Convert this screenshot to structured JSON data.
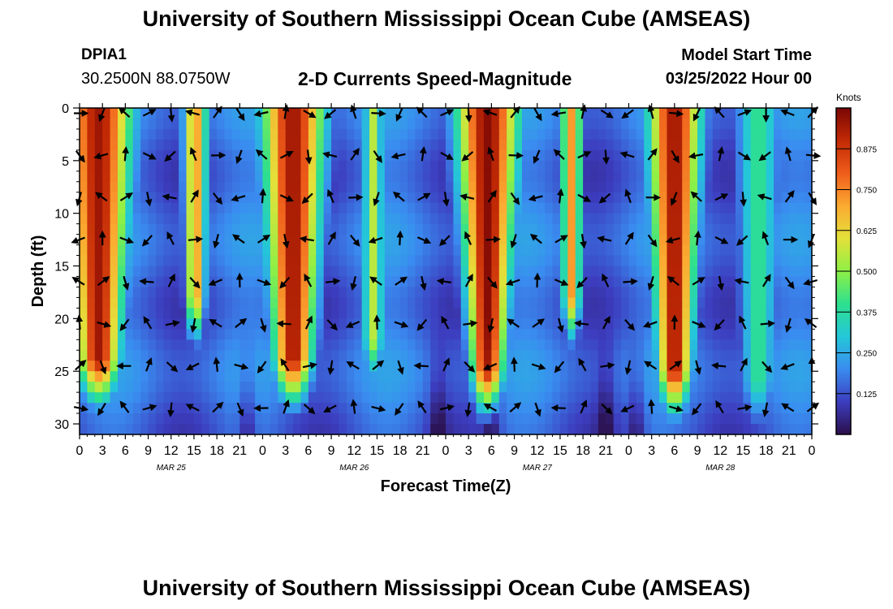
{
  "header": {
    "title": "University of Southern Mississippi Ocean Cube (AMSEAS)",
    "station_id": "DPIA1",
    "coordinates": "30.2500N  88.0750W",
    "subtitle": "2-D Currents Speed-Magnitude",
    "model_start_label": "Model Start Time",
    "model_start_value": "03/25/2022 Hour 00"
  },
  "footer": {
    "title": "University of Southern Mississippi Ocean Cube (AMSEAS)"
  },
  "chart_data": {
    "type": "heatmap",
    "xlabel": "Forecast Time(Z)",
    "ylabel": "Depth (ft)",
    "x_range": [
      0,
      96
    ],
    "y_range": [
      0,
      31
    ],
    "x_tick_labels": [
      "0",
      "3",
      "6",
      "9",
      "12",
      "15",
      "18",
      "21",
      "0",
      "3",
      "6",
      "9",
      "12",
      "15",
      "18",
      "21",
      "0",
      "3",
      "6",
      "9",
      "12",
      "15",
      "18",
      "21",
      "0",
      "3",
      "6",
      "9",
      "12",
      "15",
      "18",
      "21",
      "0"
    ],
    "y_ticks": [
      0,
      5,
      10,
      15,
      20,
      25,
      30
    ],
    "y_tick_labels": [
      "0",
      "5",
      "10",
      "15",
      "20",
      "25",
      "30"
    ],
    "day_labels": [
      {
        "text": "MAR 25",
        "hour": 12
      },
      {
        "text": "MAR 26",
        "hour": 36
      },
      {
        "text": "MAR 27",
        "hour": 60
      },
      {
        "text": "MAR 28",
        "hour": 84
      }
    ],
    "colorbar": {
      "units": "Knots",
      "min": 0,
      "max": 1.0,
      "tick_values": [
        0.125,
        0.25,
        0.375,
        0.5,
        0.625,
        0.75,
        0.875
      ],
      "tick_labels": [
        "0.125",
        "0.250",
        "0.375",
        "0.500",
        "0.625",
        "0.750",
        "0.875"
      ],
      "colors": [
        "#2b0f4a",
        "#3c3dbf",
        "#3a8cf0",
        "#24c7d8",
        "#2de08e",
        "#8ef046",
        "#e3e13a",
        "#fbaa31",
        "#ef5d1b",
        "#c22a05",
        "#7a0605"
      ]
    },
    "arrow_rows_depth_ft": [
      0.5,
      4.5,
      8.5,
      12.5,
      16.5,
      20.5,
      24.5,
      28.5
    ],
    "arrow_cols_hour": [
      0,
      3,
      6,
      9,
      12,
      15,
      18,
      21,
      24,
      27,
      30,
      33,
      36,
      39,
      42,
      45,
      48,
      51,
      54,
      57,
      60,
      63,
      66,
      69,
      72,
      75,
      78,
      81,
      84,
      87,
      90,
      93,
      96
    ],
    "speed_model_note": "speed(hour, depth) estimated from the plot",
    "speed_bands": [
      {
        "center_hour": 2.5,
        "width_top": 4.5,
        "width_bottom": 2.2,
        "peak": 0.95,
        "fade_depth": 24
      },
      {
        "center_hour": 15.2,
        "width_top": 1.6,
        "width_bottom": 1.0,
        "peak": 0.72,
        "fade_depth": 18
      },
      {
        "center_hour": 28.0,
        "width_top": 4.2,
        "width_bottom": 2.0,
        "peak": 0.95,
        "fade_depth": 24
      },
      {
        "center_hour": 38.5,
        "width_top": 1.2,
        "width_bottom": 1.4,
        "peak": 0.55,
        "fade_depth": 22
      },
      {
        "center_hour": 53.5,
        "width_top": 4.2,
        "width_bottom": 1.6,
        "peak": 0.98,
        "fade_depth": 25
      },
      {
        "center_hour": 64.5,
        "width_top": 1.4,
        "width_bottom": 1.0,
        "peak": 0.72,
        "fade_depth": 18
      },
      {
        "center_hour": 78.0,
        "width_top": 3.5,
        "width_bottom": 1.8,
        "peak": 0.95,
        "fade_depth": 25
      },
      {
        "center_hour": 89.0,
        "width_top": 3.0,
        "width_bottom": 2.0,
        "peak": 0.4,
        "fade_depth": 26
      }
    ]
  }
}
